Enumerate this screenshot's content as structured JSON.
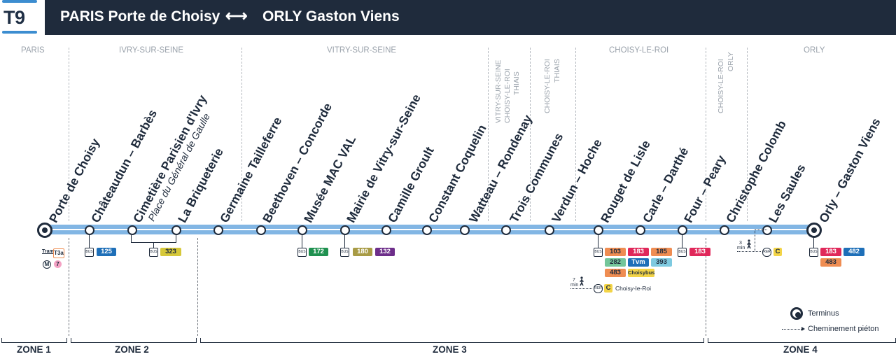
{
  "line": {
    "code": "T9",
    "title_from": "PARIS Porte de Choisy",
    "arrow": "⟷",
    "title_to": "ORLY Gaston Viens",
    "color": "#82b6e4",
    "dark": "#1f2b3c"
  },
  "communes": {
    "paris": "PARIS",
    "ivry": "IVRY-SUR-SEINE",
    "vitry": "VITRY-SUR-SEINE",
    "vitry_choisy_thiais_1": "VITRY-SUR-SEINE",
    "vitry_choisy_thiais_2": "CHOISY-LE-ROI",
    "vitry_choisy_thiais_3": "THIAIS",
    "choisy_thiais_1": "CHOISY-LE-ROI",
    "choisy_thiais_2": "THIAIS",
    "choisy": "CHOISY-LE-ROI",
    "choisy_orly_1": "CHOISY-LE-ROI",
    "choisy_orly_2": "ORLY",
    "orly": "ORLY"
  },
  "stations": [
    {
      "name": "Porte de Choisy",
      "subtitle": ""
    },
    {
      "name": "Châteaudun – Barbès",
      "subtitle": ""
    },
    {
      "name": "Cimetière Parisien d'Ivry",
      "subtitle": "Place du Général de Gaulle"
    },
    {
      "name": "La Briqueterie",
      "subtitle": ""
    },
    {
      "name": "Germaine Tailleferre",
      "subtitle": ""
    },
    {
      "name": "Beethoven – Concorde",
      "subtitle": ""
    },
    {
      "name": "Musée MAC VAL",
      "subtitle": ""
    },
    {
      "name": "Mairie de Vitry-sur-Seine",
      "subtitle": ""
    },
    {
      "name": "Camille Groult",
      "subtitle": ""
    },
    {
      "name": "Constant Coquelin",
      "subtitle": ""
    },
    {
      "name": "Watteau – Rondenay",
      "subtitle": ""
    },
    {
      "name": "Trois Communes",
      "subtitle": ""
    },
    {
      "name": "Verdun – Hoche",
      "subtitle": ""
    },
    {
      "name": "Rouget de Lisle",
      "subtitle": ""
    },
    {
      "name": "Carle – Darthé",
      "subtitle": ""
    },
    {
      "name": "Four – Peary",
      "subtitle": ""
    },
    {
      "name": "Christophe Colomb",
      "subtitle": ""
    },
    {
      "name": "Les Saules",
      "subtitle": ""
    },
    {
      "name": "Orly – Gaston Viens",
      "subtitle": ""
    }
  ],
  "connections": {
    "bus_tag": "BUS",
    "rer_tag": "RER",
    "porte_choisy": {
      "tram": "T3a",
      "metro": "M",
      "metro_line": "7"
    },
    "chateaudun": [
      "125"
    ],
    "cimetiere_briqueterie": [
      "323"
    ],
    "musee": [
      "172"
    ],
    "mairie": [
      "180",
      "132"
    ],
    "rouget": [
      "103",
      "183",
      "185",
      "282",
      "Tvm",
      "393",
      "483",
      "Choisybus"
    ],
    "rouget_walk": {
      "minutes": "7",
      "unit": "min",
      "rer_line": "C",
      "station": "Choisy-le-Roi"
    },
    "four": [
      "183"
    ],
    "les_saules_walk": {
      "minutes": "3",
      "unit": "min",
      "rer_line": "C"
    },
    "orly": [
      "183",
      "482",
      "483"
    ]
  },
  "colors": {
    "b125": "#1e6fb8",
    "b323": "#d6c83a",
    "b172": "#1f9150",
    "b180": "#a89b45",
    "b132": "#6d2e8a",
    "b103": "#ef8d52",
    "b183": "#e0285a",
    "b185": "#ef8d52",
    "b282": "#74c69a",
    "bTvm": "#1e6fb8",
    "b393": "#7ecae0",
    "b483": "#ef8d52",
    "bChoisybus": "#f3d447",
    "b482": "#1e6fb8",
    "rerC": "#f3d447"
  },
  "legend": {
    "terminus": "Terminus",
    "walk": "Cheminement piéton"
  },
  "zones": [
    "ZONE 1",
    "ZONE 2",
    "ZONE 3",
    "ZONE 4"
  ]
}
